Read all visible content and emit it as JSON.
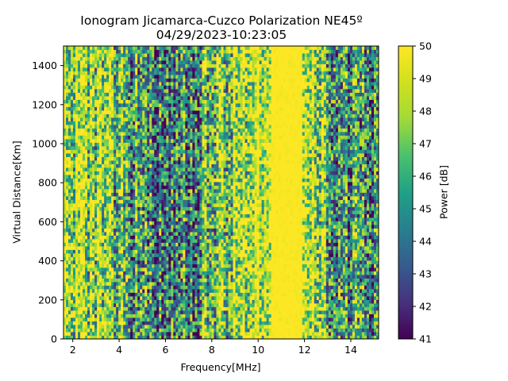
{
  "chart_data": {
    "type": "heatmap",
    "title": "Ionogram Jicamarca-Cuzco Polarization NE45º",
    "subtitle": "04/29/2023-10:23:05",
    "xlabel": "Frequency[MHz]",
    "ylabel": "Virtual Distance[Km]",
    "colorbar_label": "Power [dB]",
    "xlim": [
      1.6,
      15.2
    ],
    "ylim": [
      0,
      1500
    ],
    "xticks": [
      2,
      4,
      6,
      8,
      10,
      12,
      14
    ],
    "yticks": [
      0,
      200,
      400,
      600,
      800,
      1000,
      1200,
      1400
    ],
    "clim": [
      41,
      50
    ],
    "colorbar_ticks": [
      41,
      42,
      43,
      44,
      45,
      46,
      47,
      48,
      49,
      50
    ],
    "colormap": "viridis",
    "power_profile_by_frequency": [
      {
        "freq_mhz": 1.6,
        "mean_power_db": 49.0
      },
      {
        "freq_mhz": 2.5,
        "mean_power_db": 48.5
      },
      {
        "freq_mhz": 3.0,
        "mean_power_db": 47.5
      },
      {
        "freq_mhz": 4.0,
        "mean_power_db": 46.5
      },
      {
        "freq_mhz": 5.0,
        "mean_power_db": 45.0
      },
      {
        "freq_mhz": 6.0,
        "mean_power_db": 44.5
      },
      {
        "freq_mhz": 7.0,
        "mean_power_db": 45.0
      },
      {
        "freq_mhz": 8.0,
        "mean_power_db": 46.5
      },
      {
        "freq_mhz": 9.0,
        "mean_power_db": 48.0
      },
      {
        "freq_mhz": 10.0,
        "mean_power_db": 49.5
      },
      {
        "freq_mhz": 11.0,
        "mean_power_db": 50.0
      },
      {
        "freq_mhz": 11.8,
        "mean_power_db": 50.0
      },
      {
        "freq_mhz": 12.5,
        "mean_power_db": 48.5
      },
      {
        "freq_mhz": 13.0,
        "mean_power_db": 46.0
      },
      {
        "freq_mhz": 14.0,
        "mean_power_db": 45.0
      },
      {
        "freq_mhz": 15.2,
        "mean_power_db": 45.5
      }
    ]
  }
}
